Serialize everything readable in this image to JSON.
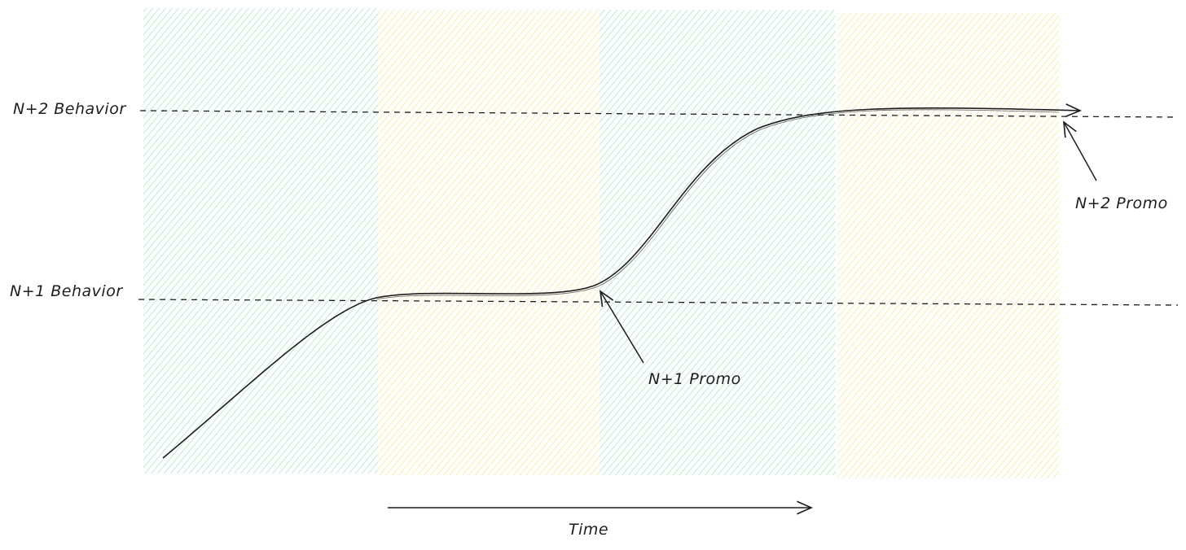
{
  "diagram": {
    "levels": [
      {
        "id": "n2",
        "label": "N+2 Behavior"
      },
      {
        "id": "n1",
        "label": "N+1 Behavior"
      }
    ],
    "annotations": [
      {
        "id": "n1-promo",
        "label": "N+1 Promo"
      },
      {
        "id": "n2-promo",
        "label": "N+2 Promo"
      }
    ],
    "axis": {
      "label": "Time"
    },
    "colors": {
      "green_band": "#4cc77e",
      "yellow_band": "#f5d94a",
      "stroke": "#1e1e1e"
    }
  }
}
